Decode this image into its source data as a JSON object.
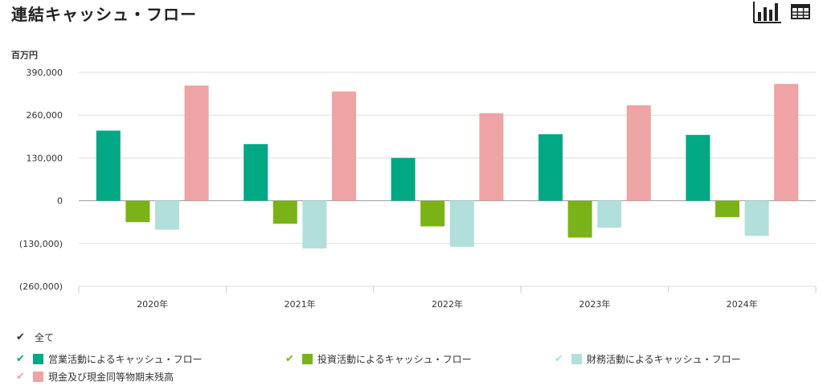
{
  "title": "連結キャッシュ・フロー",
  "unit_label": "百万円",
  "toolbar": {
    "chart_view_icon": "bar-chart-icon",
    "table_view_icon": "table-icon"
  },
  "legend": {
    "all_label": "全て",
    "all_check_color": "#333333",
    "items": [
      {
        "label": "営業活動によるキャッシュ・フロー",
        "color": "#00A884",
        "check_color": "#00A884"
      },
      {
        "label": "投資活動によるキャッシュ・フロー",
        "color": "#7AB317",
        "check_color": "#7AB317"
      },
      {
        "label": "財務活動によるキャッシュ・フロー",
        "color": "#B1DFDB",
        "check_color": "#B1DFDB"
      },
      {
        "label": "現金及び現金同等物期末残高",
        "color": "#EEA3A4",
        "check_color": "#EEA3A4"
      }
    ]
  },
  "chart_data": {
    "type": "bar",
    "categories": [
      "2020年",
      "2021年",
      "2022年",
      "2023年",
      "2024年"
    ],
    "series": [
      {
        "name": "営業活動によるキャッシュ・フロー",
        "color": "#00A884",
        "values": [
          213000,
          172000,
          130000,
          202000,
          200000
        ]
      },
      {
        "name": "投資活動によるキャッシュ・フロー",
        "color": "#7AB317",
        "values": [
          -65000,
          -70000,
          -78000,
          -112000,
          -50000
        ]
      },
      {
        "name": "財務活動によるキャッシュ・フロー",
        "color": "#B1DFDB",
        "values": [
          -88000,
          -145000,
          -140000,
          -82000,
          -107000
        ]
      },
      {
        "name": "現金及び現金同等物期末残高",
        "color": "#EEA3A4",
        "values": [
          350000,
          332000,
          266000,
          290000,
          355000
        ]
      }
    ],
    "ylim": [
      -260000,
      390000
    ],
    "yticks": [
      390000,
      260000,
      130000,
      0,
      -130000,
      -260000
    ],
    "ytick_labels": [
      "390,000",
      "260,000",
      "130,000",
      "0",
      "(130,000)",
      "(260,000)"
    ],
    "grid": true,
    "legend_position": "bottom"
  }
}
